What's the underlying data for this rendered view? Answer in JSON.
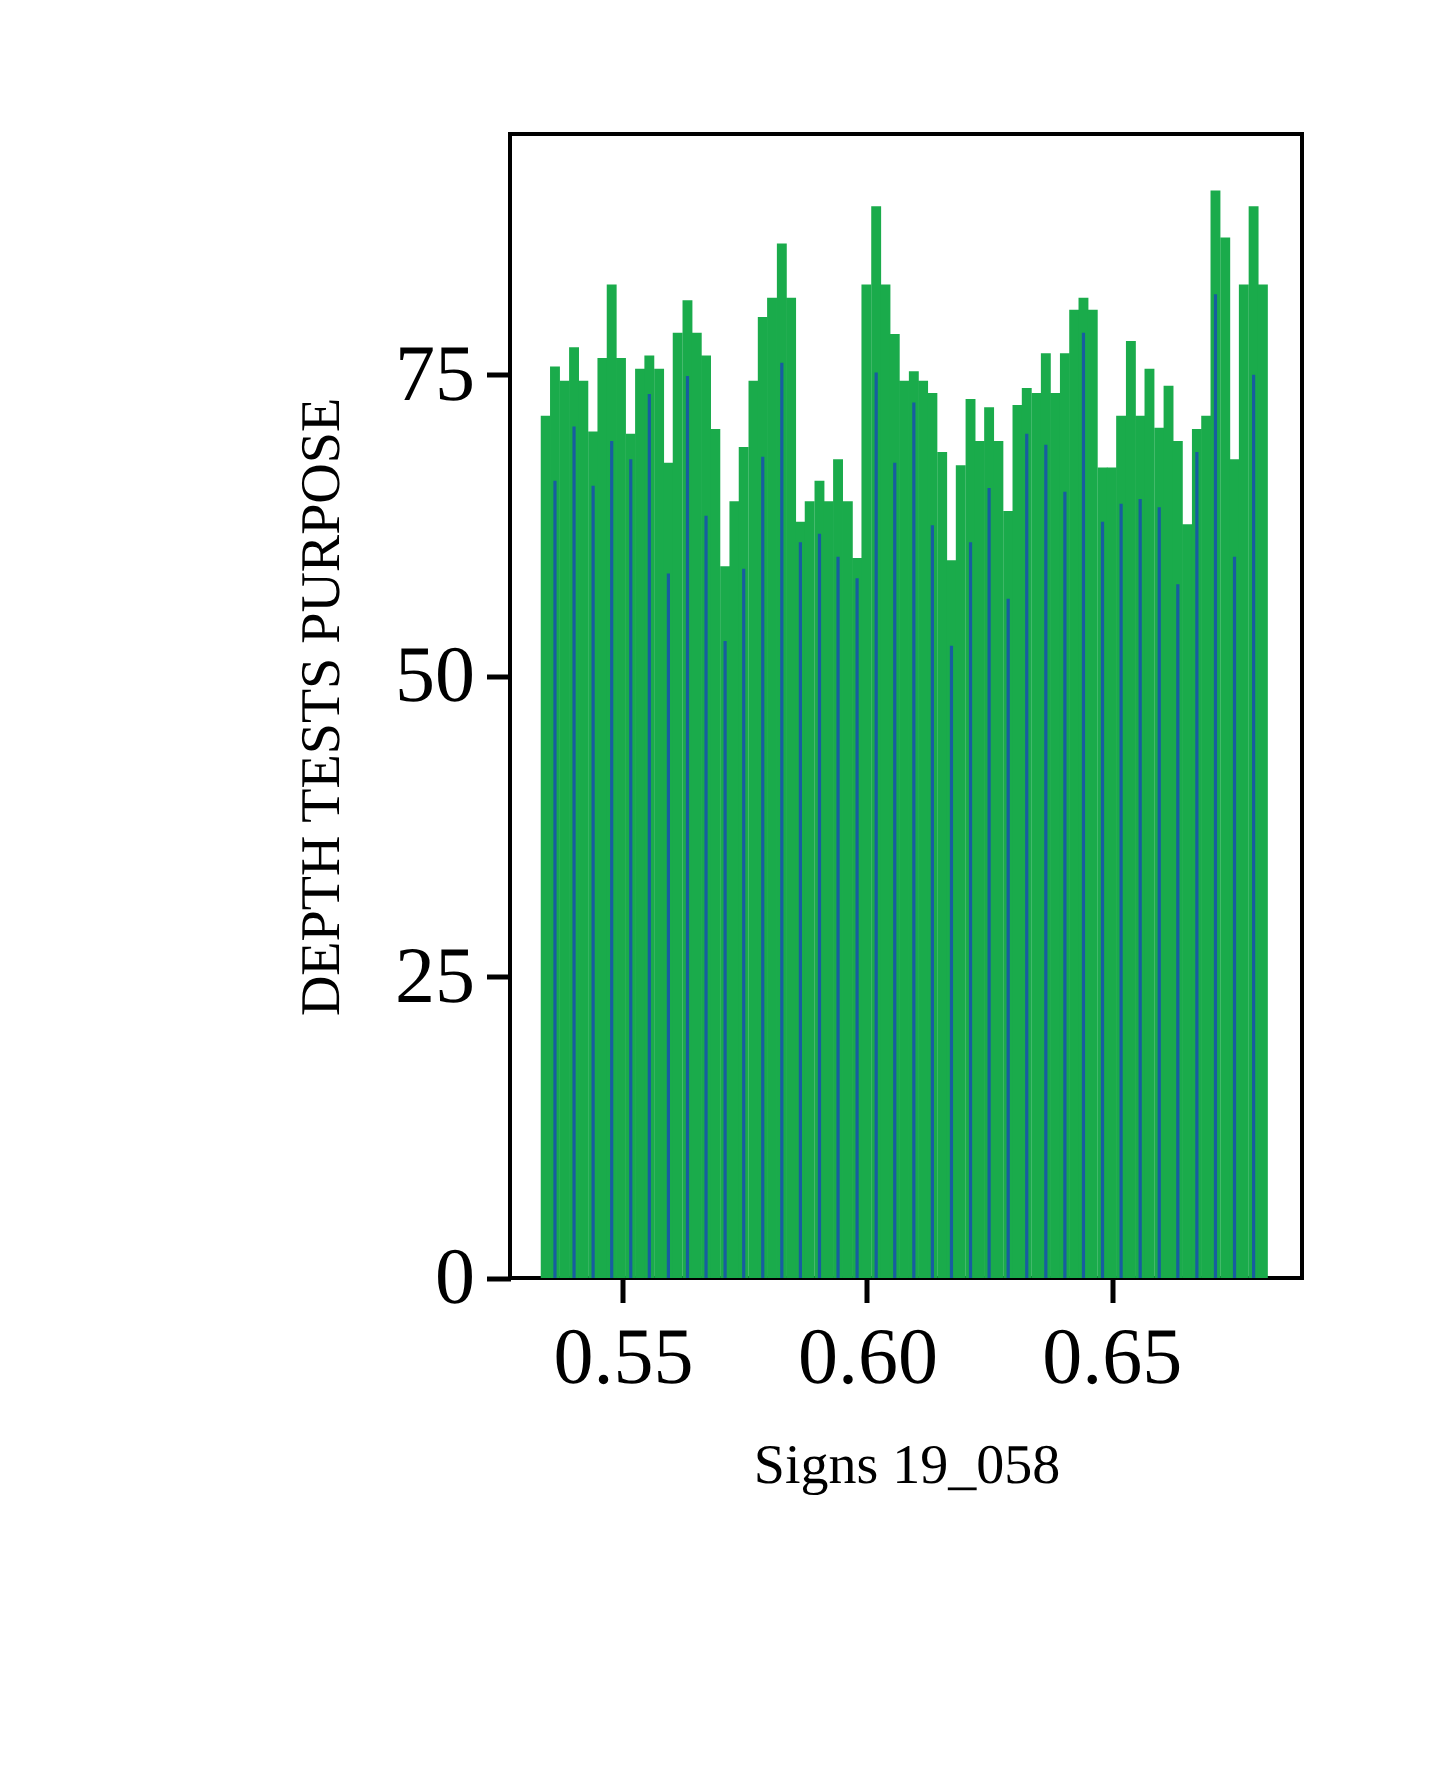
{
  "chart_data": {
    "type": "bar",
    "xlabel": "Signs 19_058",
    "ylabel": "DEPTH TESTS PURPOSE",
    "xlim": [
      0.527,
      0.689
    ],
    "xticks": [
      0.55,
      {
        "value": 0.6,
        "label": "0.60"
      },
      0.65
    ],
    "ylim": [
      0,
      95
    ],
    "yticks": [
      0,
      25,
      50,
      75
    ],
    "grid": false,
    "series": [
      {
        "color": "#1aab4b",
        "x": [
          0.5343,
          0.5362,
          0.5382,
          0.5401,
          0.542,
          0.544,
          0.5459,
          0.5478,
          0.5497,
          0.5517,
          0.5536,
          0.5555,
          0.5575,
          0.5594,
          0.5613,
          0.5633,
          0.5652,
          0.5671,
          0.569,
          0.571,
          0.5729,
          0.5748,
          0.5768,
          0.5787,
          0.5806,
          0.5826,
          0.5845,
          0.5864,
          0.5883,
          0.5903,
          0.5922,
          0.5941,
          0.5961,
          0.598,
          0.5999,
          0.6019,
          0.6038,
          0.6057,
          0.6076,
          0.6096,
          0.6115,
          0.6134,
          0.6154,
          0.6173,
          0.6192,
          0.6212,
          0.6231,
          0.625,
          0.6269,
          0.6289,
          0.6308,
          0.6327,
          0.6347,
          0.6366,
          0.6385,
          0.6405,
          0.6424,
          0.6443,
          0.6462,
          0.6482,
          0.6501,
          0.652,
          0.654,
          0.6559,
          0.6578,
          0.6598,
          0.6617,
          0.6636,
          0.6655,
          0.6675,
          0.6694,
          0.6713,
          0.6733,
          0.6752,
          0.6771,
          0.6791,
          0.681
        ],
        "values": [
          71.6,
          75.7,
          74.5,
          77.3,
          74.5,
          70.3,
          76.4,
          82.5,
          76.4,
          70.1,
          75.5,
          76.6,
          75.5,
          67.7,
          78.5,
          81.2,
          78.5,
          76.6,
          70.5,
          59.1,
          64.5,
          69.0,
          74.5,
          79.8,
          81.4,
          85.9,
          81.4,
          62.8,
          64.5,
          66.2,
          64.5,
          68.0,
          64.5,
          59.8,
          82.5,
          89.0,
          82.5,
          78.4,
          74.5,
          75.3,
          74.5,
          73.5,
          68.6,
          59.6,
          67.5,
          73.0,
          69.5,
          72.3,
          69.5,
          63.7,
          72.5,
          73.9,
          73.5,
          76.8,
          73.5,
          76.8,
          80.4,
          81.4,
          80.4,
          67.3,
          67.3,
          71.6,
          77.8,
          71.6,
          75.5,
          70.6,
          74.1,
          69.5,
          62.6,
          70.5,
          71.6,
          90.3,
          86.4,
          68.0,
          82.5,
          89.0,
          82.5
        ]
      },
      {
        "color": "#175da0",
        "x": [
          0.5362,
          0.5401,
          0.544,
          0.5478,
          0.5517,
          0.5555,
          0.5594,
          0.5633,
          0.5671,
          0.571,
          0.5748,
          0.5787,
          0.5826,
          0.5864,
          0.5903,
          0.5941,
          0.598,
          0.6019,
          0.6057,
          0.6096,
          0.6134,
          0.6173,
          0.6212,
          0.625,
          0.6289,
          0.6327,
          0.6366,
          0.6405,
          0.6443,
          0.6482,
          0.652,
          0.6559,
          0.6598,
          0.6636,
          0.6675,
          0.6713,
          0.6752,
          0.6791
        ],
        "values": [
          66.2,
          70.7,
          65.8,
          69.5,
          68.0,
          73.4,
          58.5,
          74.9,
          63.3,
          52.9,
          58.9,
          68.2,
          76.0,
          61.1,
          61.8,
          59.9,
          58.1,
          75.2,
          67.7,
          72.7,
          62.5,
          52.5,
          61.1,
          65.6,
          56.4,
          70.1,
          69.2,
          65.3,
          78.5,
          62.8,
          64.3,
          64.7,
          64.0,
          57.6,
          68.6,
          81.7,
          59.9,
          75.0
        ]
      }
    ]
  }
}
